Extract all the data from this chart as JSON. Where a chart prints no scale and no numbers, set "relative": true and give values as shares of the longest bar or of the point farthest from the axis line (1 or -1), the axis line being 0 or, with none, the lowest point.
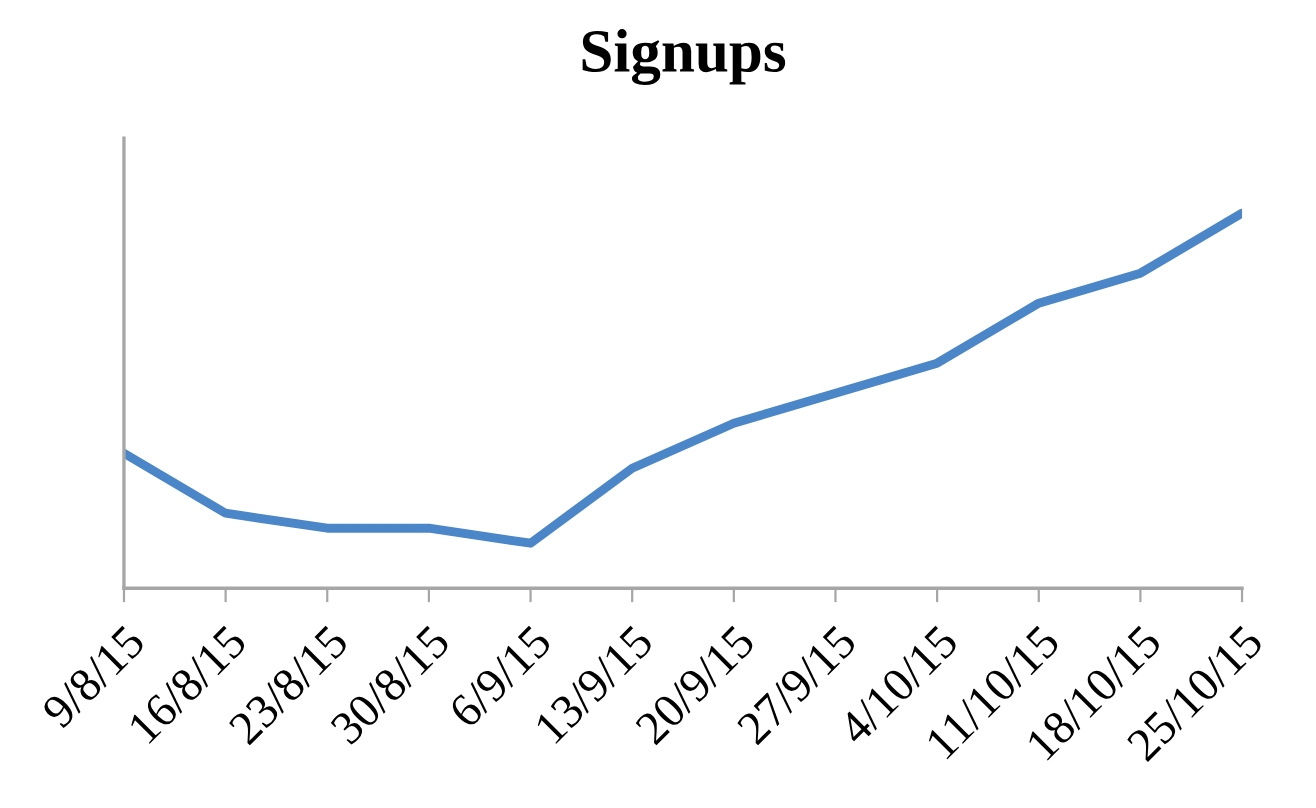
{
  "chart_data": {
    "type": "line",
    "title": "Signups",
    "relative": true,
    "categories": [
      "9/8/15",
      "16/8/15",
      "23/8/15",
      "30/8/15",
      "6/9/15",
      "13/9/15",
      "20/9/15",
      "27/9/15",
      "4/10/15",
      "11/10/15",
      "18/10/15",
      "25/10/15"
    ],
    "series": [
      {
        "color": "#4a86c8",
        "values": [
          0.36,
          0.2,
          0.16,
          0.16,
          0.12,
          0.32,
          0.44,
          0.52,
          0.6,
          0.76,
          0.84,
          1.0
        ]
      }
    ],
    "marker": "none",
    "line_style": "solid",
    "grid": false,
    "legend": false
  }
}
